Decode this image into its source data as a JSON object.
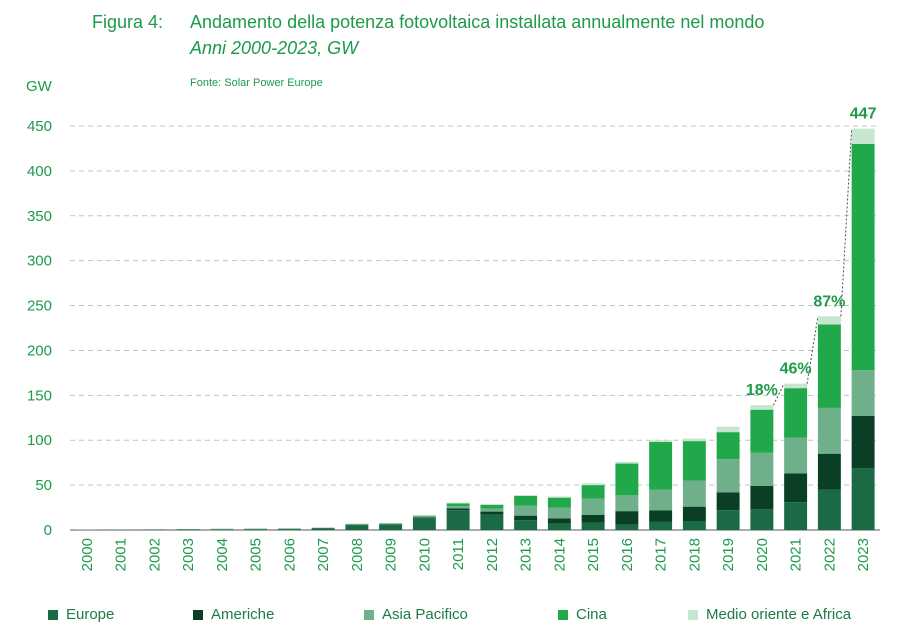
{
  "header": {
    "figure_label": "Figura 4:",
    "title": "Andamento della potenza fotovoltaica installata annualmente nel mondo",
    "subtitle": "Anni 2000-2023, GW",
    "source": "Fonte: Solar Power Europe"
  },
  "colors": {
    "europe": "#1a6b45",
    "americhe": "#0a3f26",
    "asia_pacifico": "#6fb08a",
    "cina": "#20a84a",
    "medio_oriente_africa": "#c7e6cf",
    "text": "#1d9a4a",
    "grid": "#b7c9be"
  },
  "chart_data": {
    "type": "bar",
    "stacked": true,
    "ylabel": "GW",
    "ylim": [
      0,
      450
    ],
    "yticks": [
      0,
      50,
      100,
      150,
      200,
      250,
      300,
      350,
      400,
      450
    ],
    "grid": true,
    "legend_position": "bottom",
    "categories": [
      "2000",
      "2001",
      "2002",
      "2003",
      "2004",
      "2005",
      "2006",
      "2007",
      "2008",
      "2009",
      "2010",
      "2011",
      "2012",
      "2013",
      "2014",
      "2015",
      "2016",
      "2017",
      "2018",
      "2019",
      "2020",
      "2021",
      "2022",
      "2023"
    ],
    "series": [
      {
        "name": "Europe",
        "color_key": "europe",
        "values": [
          0.1,
          0.2,
          0.3,
          0.4,
          0.8,
          0.9,
          1.0,
          2.0,
          5.5,
          6.0,
          13.0,
          22.0,
          17.0,
          11.0,
          7.0,
          8.0,
          6.0,
          9.0,
          10.0,
          22.0,
          23.0,
          31.0,
          45.0,
          69.0
        ]
      },
      {
        "name": "Americhe",
        "color_key": "americhe",
        "values": [
          0.1,
          0.1,
          0.1,
          0.1,
          0.1,
          0.1,
          0.1,
          0.2,
          0.4,
          0.5,
          1.0,
          2.0,
          3.5,
          5.0,
          6.0,
          9.0,
          15.0,
          13.0,
          16.0,
          20.0,
          26.0,
          32.0,
          40.0,
          58.0
        ]
      },
      {
        "name": "Asia Pacifico",
        "color_key": "asia_pacifico",
        "values": [
          0.3,
          0.3,
          0.4,
          0.6,
          0.5,
          0.6,
          0.7,
          0.4,
          0.9,
          0.9,
          1.5,
          2.5,
          3.5,
          11.0,
          12.0,
          18.0,
          18.0,
          23.0,
          29.0,
          37.0,
          37.0,
          40.0,
          51.0,
          51.0
        ]
      },
      {
        "name": "Cina",
        "color_key": "cina",
        "values": [
          0.0,
          0.0,
          0.0,
          0.0,
          0.0,
          0.0,
          0.0,
          0.1,
          0.1,
          0.2,
          0.5,
          3.0,
          4.0,
          11.0,
          11.0,
          15.0,
          35.0,
          53.0,
          44.0,
          30.0,
          48.0,
          55.0,
          93.0,
          252.0
        ]
      },
      {
        "name": "Medio oriente e Africa",
        "color_key": "medio_oriente_africa",
        "values": [
          0.2,
          0.1,
          0.1,
          0.1,
          0.1,
          0.1,
          0.1,
          0.1,
          0.2,
          0.2,
          0.5,
          1.0,
          1.0,
          1.0,
          1.5,
          2.0,
          2.0,
          2.0,
          3.0,
          6.0,
          5.0,
          5.0,
          9.0,
          17.0
        ]
      }
    ],
    "annotations": [
      {
        "category": "2020",
        "text": "18%"
      },
      {
        "category": "2021",
        "text": "46%"
      },
      {
        "category": "2022",
        "text": "87%"
      },
      {
        "category": "2023",
        "text": "447"
      }
    ]
  }
}
